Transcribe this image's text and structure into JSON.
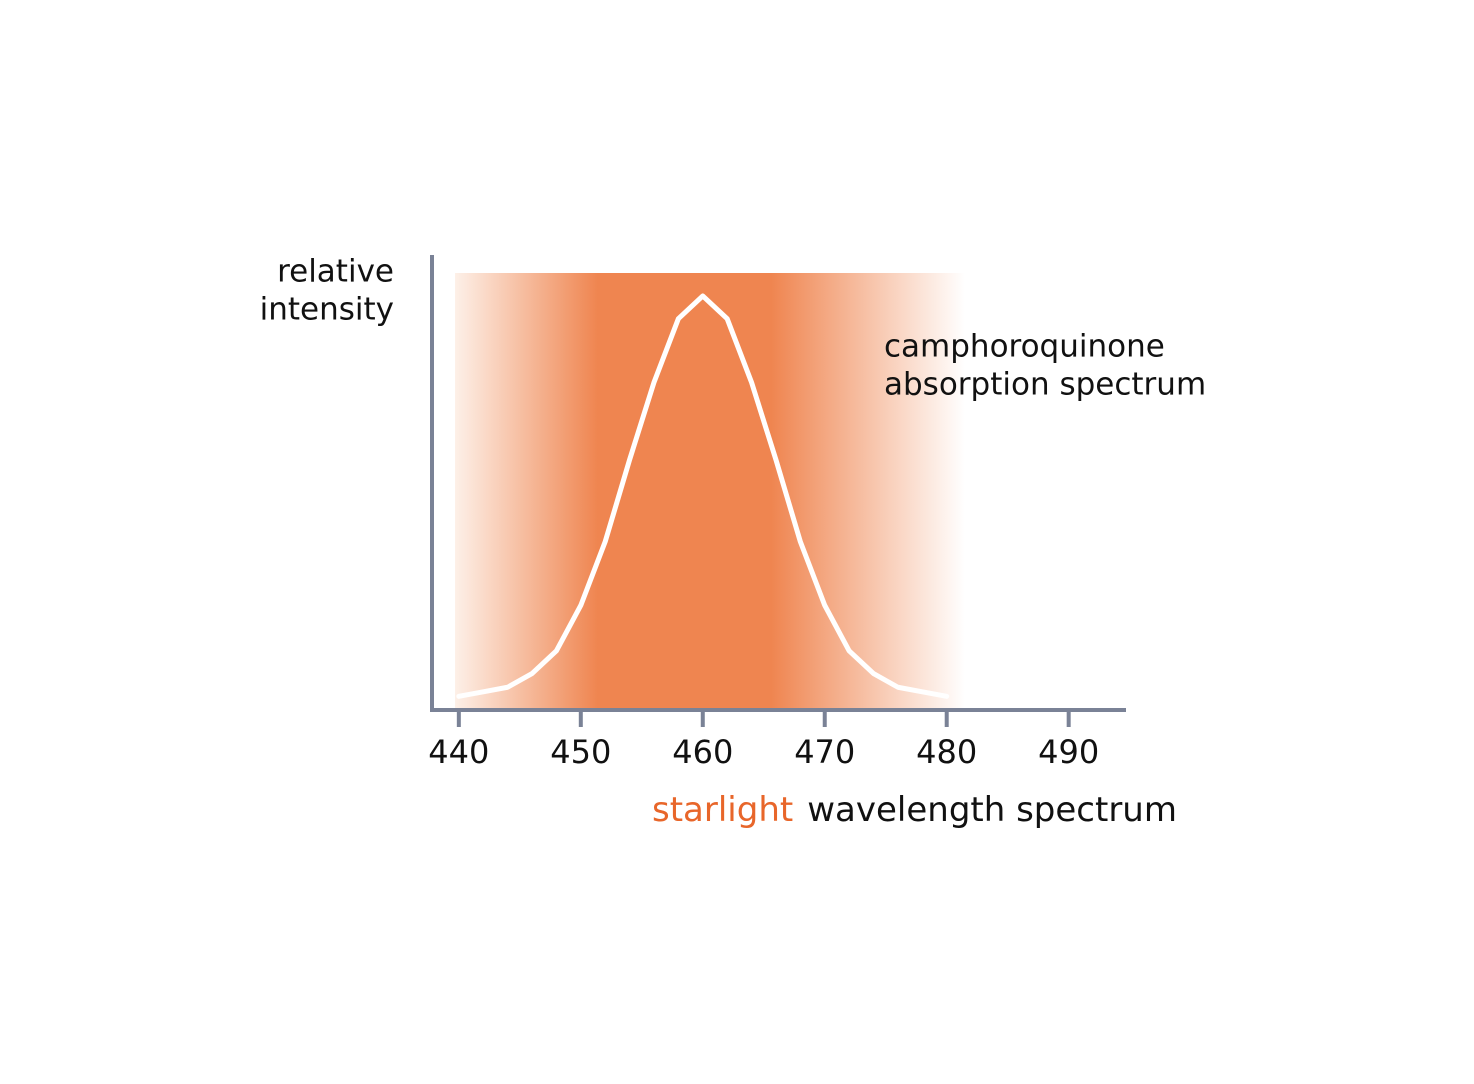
{
  "chart_data": {
    "type": "line",
    "ylabel": [
      "relative",
      "intensity"
    ],
    "annotation": [
      "camphoroquinone",
      "absorption spectrum"
    ],
    "xlabel": [
      "starlight",
      "wavelength spectrum"
    ],
    "xlabel_colors": [
      "#e8662a",
      "#111111"
    ],
    "x": [
      440,
      442,
      444,
      446,
      448,
      450,
      452,
      454,
      456,
      458,
      460,
      462,
      464,
      466,
      468,
      470,
      472,
      474,
      476,
      478,
      480
    ],
    "values": [
      0.03,
      0.04,
      0.05,
      0.08,
      0.13,
      0.23,
      0.37,
      0.55,
      0.72,
      0.86,
      0.91,
      0.86,
      0.72,
      0.55,
      0.37,
      0.23,
      0.13,
      0.08,
      0.05,
      0.04,
      0.03
    ],
    "color": "#ffffff",
    "xlim": [
      437.8,
      494.7
    ],
    "ylim": [
      0,
      1
    ],
    "xticks": [
      440,
      450,
      460,
      470,
      480,
      490
    ]
  }
}
